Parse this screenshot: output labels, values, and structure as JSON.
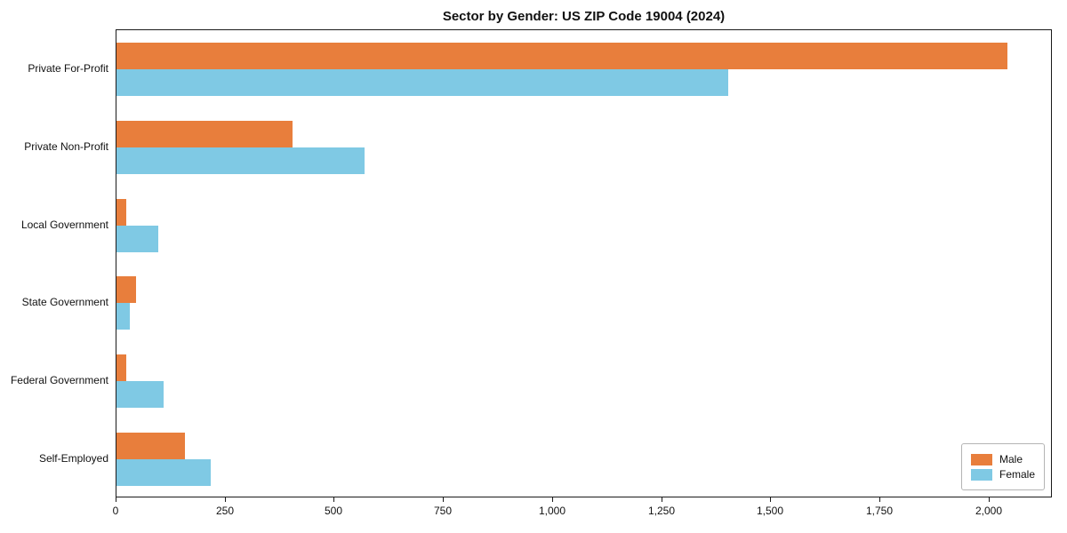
{
  "title": "Sector by Gender: US ZIP Code 19004 (2024)",
  "chart_data": {
    "type": "bar",
    "orientation": "horizontal",
    "title": "Sector by Gender: US ZIP Code 19004 (2024)",
    "categories": [
      "Private For-Profit",
      "Private Non-Profit",
      "Local Government",
      "State Government",
      "Federal Government",
      "Self-Employed"
    ],
    "series": [
      {
        "name": "Male",
        "color": "#e87e3c",
        "values": [
          2045,
          405,
          22,
          45,
          22,
          157
        ]
      },
      {
        "name": "Female",
        "color": "#7fc9e4",
        "values": [
          1405,
          570,
          96,
          31,
          108,
          216
        ]
      }
    ],
    "xlabel": "",
    "ylabel": "",
    "xlim": [
      0,
      2145
    ],
    "x_ticks": [
      0,
      250,
      500,
      750,
      1000,
      1250,
      1500,
      1750,
      2000
    ],
    "x_tick_labels": [
      "0",
      "250",
      "500",
      "750",
      "1,000",
      "1,250",
      "1,500",
      "1,750",
      "2,000"
    ],
    "grid": false,
    "legend_position": "lower right",
    "legend_labels": [
      "Male",
      "Female"
    ]
  }
}
